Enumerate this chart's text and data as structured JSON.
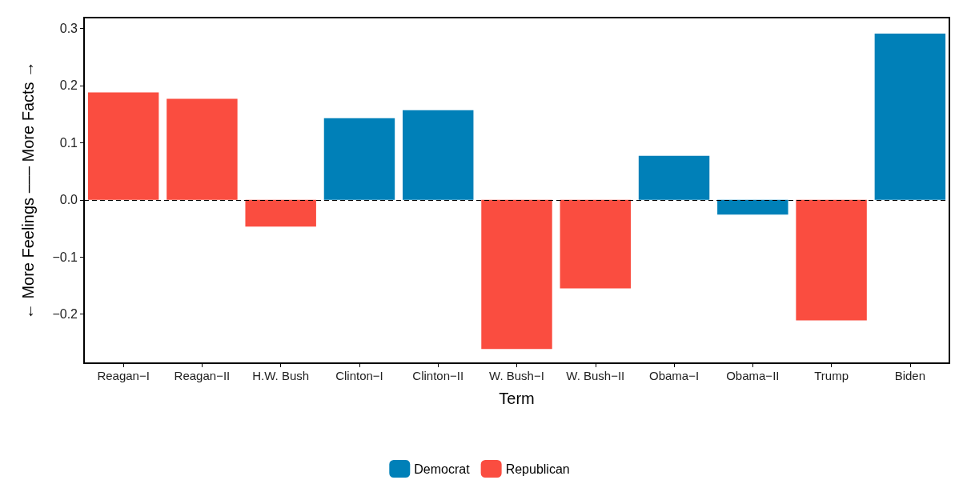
{
  "chart_data": {
    "type": "bar",
    "xlabel": "Term",
    "ylabel": "← More Feelings ––– More Facts →",
    "categories": [
      "Reagan−I",
      "Reagan−II",
      "H.W. Bush",
      "Clinton−I",
      "Clinton−II",
      "W. Bush−I",
      "W. Bush−II",
      "Obama−I",
      "Obama−II",
      "Trump",
      "Biden"
    ],
    "series": [
      {
        "name": "Democrat",
        "color": "#0080b8",
        "values": [
          null,
          null,
          null,
          0.143,
          0.157,
          null,
          null,
          0.077,
          -0.026,
          null,
          0.291
        ]
      },
      {
        "name": "Republican",
        "color": "#fa4d40",
        "values": [
          0.188,
          0.177,
          -0.047,
          null,
          null,
          -0.261,
          -0.155,
          null,
          null,
          -0.211,
          null
        ]
      }
    ],
    "ylim": [
      -0.286,
      0.319
    ],
    "yticks": [
      {
        "value": -0.2,
        "label": "−0.2"
      },
      {
        "value": -0.1,
        "label": "−0.1"
      },
      {
        "value": 0,
        "label": "0.0"
      },
      0.1,
      0.2,
      0.3
    ],
    "ref_lines": [
      {
        "axis": "y",
        "value": 0,
        "color": "#000000",
        "line_style": "dashed"
      }
    ],
    "legend": "bottom"
  }
}
